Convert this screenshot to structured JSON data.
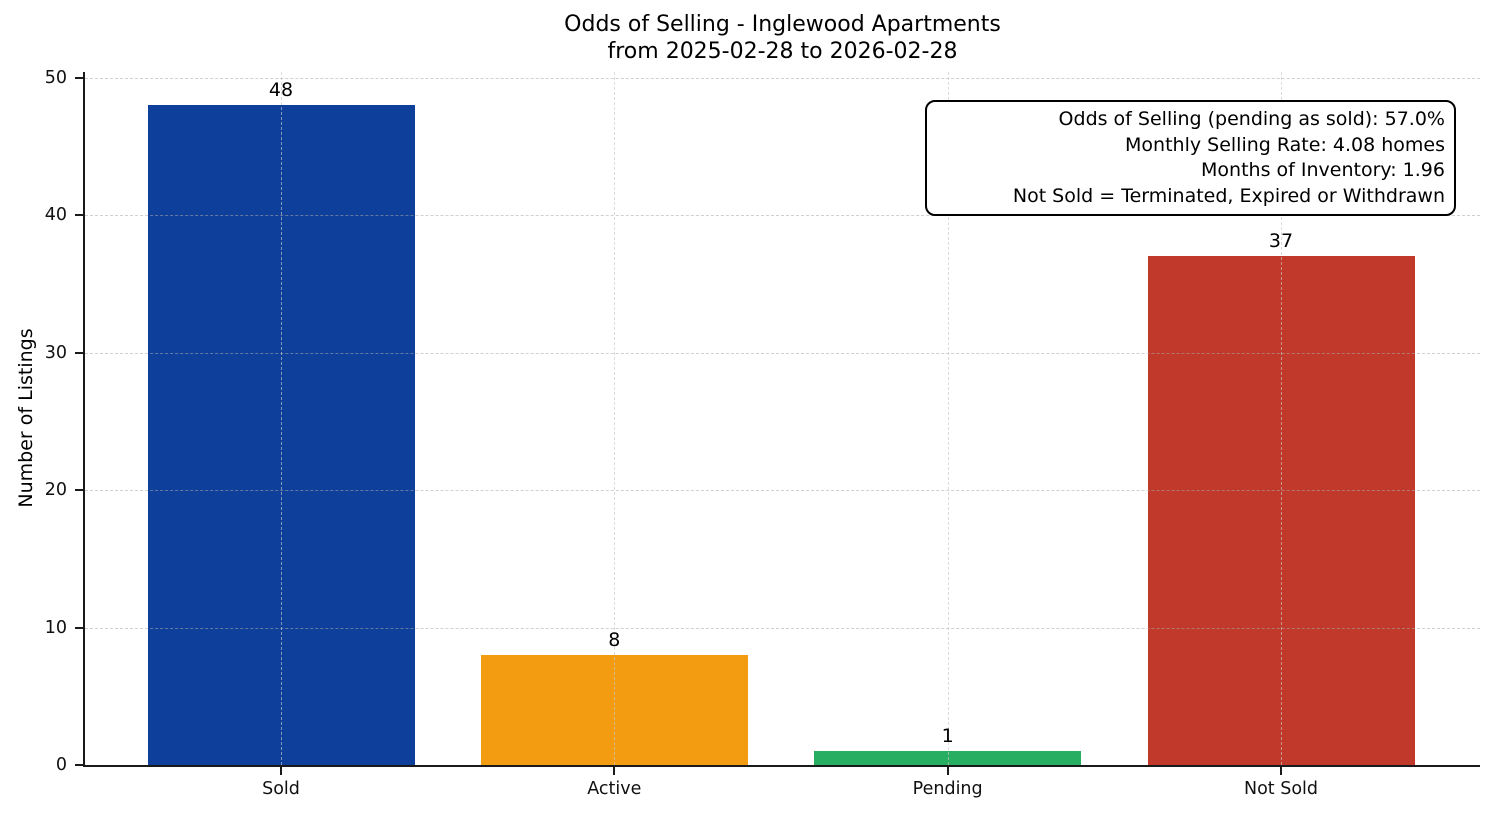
{
  "chart_data": {
    "type": "bar",
    "title": "Odds of Selling - Inglewood Apartments\nfrom 2025-02-28 to 2026-02-28",
    "title_lines": [
      "Odds of Selling - Inglewood Apartments",
      "from 2025-02-28 to 2026-02-28"
    ],
    "categories": [
      "Sold",
      "Active",
      "Pending",
      "Not Sold"
    ],
    "values": [
      48,
      8,
      1,
      37
    ],
    "bar_colors": [
      "#0e3f9a",
      "#f39c12",
      "#27ae60",
      "#c0392b"
    ],
    "xlabel": "",
    "ylabel": "Number of Listings",
    "yticks": [
      0,
      10,
      20,
      30,
      40,
      50
    ],
    "ylim": [
      0,
      50.4
    ],
    "grid": true,
    "grid_style": "dashed",
    "legend_position": "none",
    "annotation_box": {
      "position": "top-right",
      "lines": [
        "Odds of Selling (pending as sold): 57.0%",
        "Monthly Selling Rate: 4.08 homes",
        "Months of Inventory: 1.96",
        "Not Sold = Terminated, Expired or Withdrawn"
      ]
    }
  }
}
